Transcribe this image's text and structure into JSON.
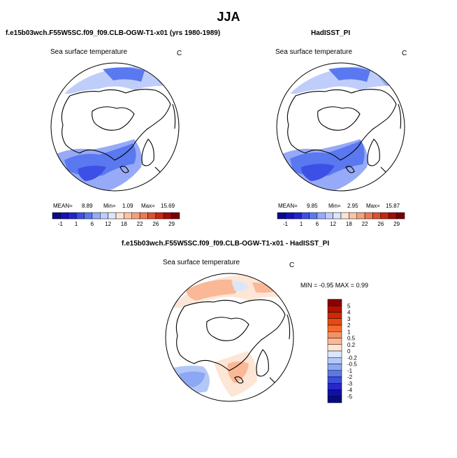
{
  "figure": {
    "season": "JJA",
    "colors": {
      "land": "#ffffff",
      "coast": "#000000"
    }
  },
  "chart_data": [
    {
      "type": "heatmap",
      "projection": "north polar stereographic",
      "title": "f.e15b03wch.F55W5SC.f09_f09.CLB-OGW-T1-x01 (yrs 1980-1989)",
      "variable": "Sea surface temperature",
      "units": "C",
      "stats": {
        "mean_label": "MEAN=",
        "mean": "8.89",
        "min_label": "Min=",
        "min": "1.09",
        "max_label": "Max=",
        "max": "15.69"
      },
      "colorbar": {
        "tick_labels": [
          "-1",
          "1",
          "6",
          "12",
          "18",
          "22",
          "26",
          "29"
        ],
        "colors": [
          "#0a0a8c",
          "#1414b4",
          "#2323d2",
          "#3c50e6",
          "#5a78f0",
          "#96aaf8",
          "#bfcdfa",
          "#dde4fb",
          "#fde3cf",
          "#f9c3a4",
          "#f3a07c",
          "#ea7a56",
          "#dc5032",
          "#c32814",
          "#a00c06",
          "#780000"
        ]
      }
    },
    {
      "type": "heatmap",
      "projection": "north polar stereographic",
      "title": "HadISST_PI",
      "variable": "Sea surface temperature",
      "units": "C",
      "stats": {
        "mean_label": "MEAN=",
        "mean": "9.85",
        "min_label": "Min=",
        "min": "2.95",
        "max_label": "Max=",
        "max": "15.87"
      },
      "colorbar": {
        "tick_labels": [
          "-1",
          "1",
          "6",
          "12",
          "18",
          "22",
          "26",
          "29"
        ],
        "colors": [
          "#0a0a8c",
          "#1414b4",
          "#2323d2",
          "#3c50e6",
          "#5a78f0",
          "#96aaf8",
          "#bfcdfa",
          "#dde4fb",
          "#fde3cf",
          "#f9c3a4",
          "#f3a07c",
          "#ea7a56",
          "#dc5032",
          "#c32814",
          "#a00c06",
          "#780000"
        ]
      }
    },
    {
      "type": "heatmap",
      "projection": "north polar stereographic",
      "title": "f.e15b03wch.F55W5SC.f09_f09.CLB-OGW-T1-x01 - HadISST_PI",
      "variable": "Sea surface temperature",
      "units": "C",
      "stats_text": "MIN =   -0.95  MAX =     0.99",
      "colorbar": {
        "orientation": "vertical",
        "tick_labels": [
          "5",
          "4",
          "3",
          "2",
          "1",
          "0.5",
          "0.2",
          "0",
          "-0.2",
          "-0.5",
          "-1",
          "-2",
          "-3",
          "-4",
          "-5"
        ],
        "colors": [
          "#8b0000",
          "#b01200",
          "#d02800",
          "#e84a14",
          "#f56a30",
          "#f89064",
          "#fab896",
          "#fde6d6",
          "#dce6fa",
          "#b4c8f8",
          "#8ca8f4",
          "#5a78ea",
          "#3c4ee0",
          "#2828c8",
          "#1010a8",
          "#0a0a80"
        ]
      }
    }
  ]
}
